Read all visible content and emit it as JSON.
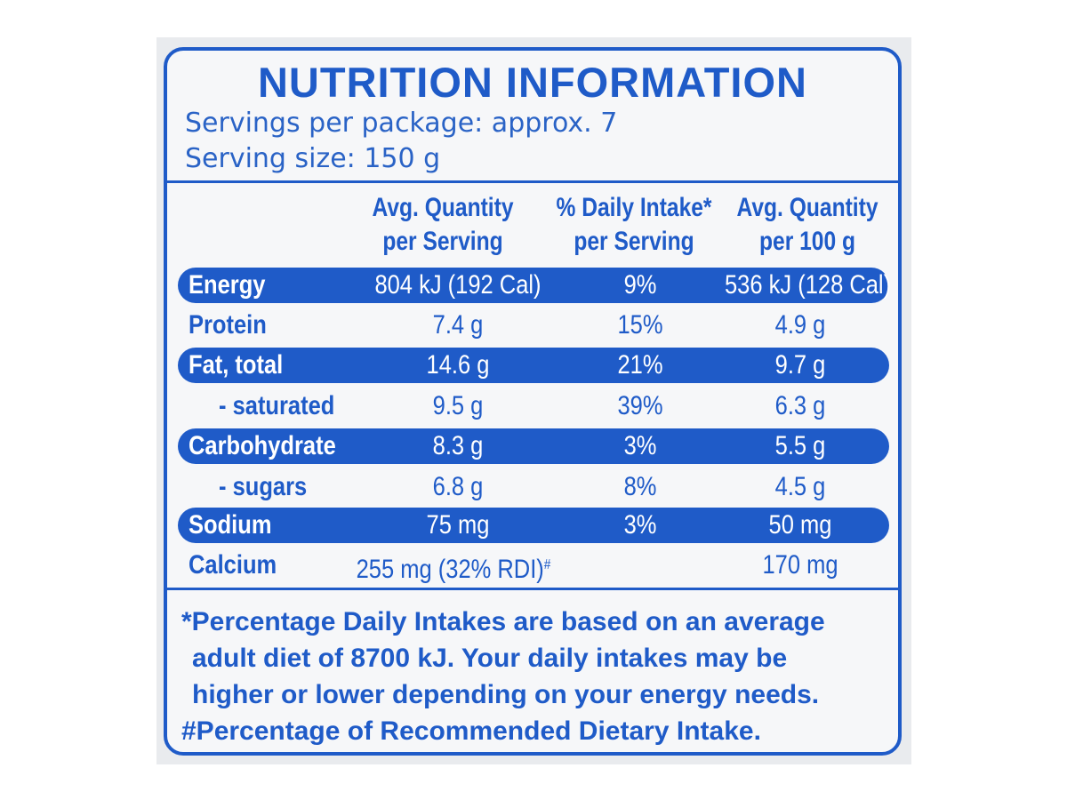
{
  "title": "NUTRITION INFORMATION",
  "servings_per_package": "Servings per package: approx. 7",
  "serving_size": "Serving size: 150 g",
  "columns": [
    {
      "line1": "Avg. Quantity",
      "line2": "per Serving"
    },
    {
      "line1": "% Daily Intake*",
      "line2": "per Serving"
    },
    {
      "line1": "Avg. Quantity",
      "line2": "per 100 g"
    }
  ],
  "rows": [
    {
      "label": "Energy",
      "per_serving": "804 kJ (192 Cal)",
      "daily_intake": "9%",
      "per_100g": "536 kJ (128 Cal)"
    },
    {
      "label": "Protein",
      "per_serving": "7.4 g",
      "daily_intake": "15%",
      "per_100g": "4.9 g"
    },
    {
      "label": "Fat, total",
      "per_serving": "14.6 g",
      "daily_intake": "21%",
      "per_100g": "9.7 g"
    },
    {
      "label": "- saturated",
      "per_serving": "9.5 g",
      "daily_intake": "39%",
      "per_100g": "6.3 g"
    },
    {
      "label": "Carbohydrate",
      "per_serving": "8.3 g",
      "daily_intake": "3%",
      "per_100g": "5.5 g"
    },
    {
      "label": "- sugars",
      "per_serving": "6.8 g",
      "daily_intake": "8%",
      "per_100g": "4.5 g"
    },
    {
      "label": "Sodium",
      "per_serving": "75 mg",
      "daily_intake": "3%",
      "per_100g": "50 mg"
    },
    {
      "label": "Calcium",
      "per_serving": "255 mg (32% RDI)",
      "per_serving_mark": "#",
      "daily_intake": "",
      "per_100g": "170 mg"
    }
  ],
  "footnotes": {
    "line1": "*Percentage Daily Intakes are based on an average",
    "line2": "adult diet of 8700 kJ. Your daily intakes may be",
    "line3": "higher or lower depending on your energy needs.",
    "line4": "#Percentage of Recommended Dietary Intake."
  },
  "colors": {
    "ink": "#1f5bc8",
    "background": "#f6f7f9"
  }
}
